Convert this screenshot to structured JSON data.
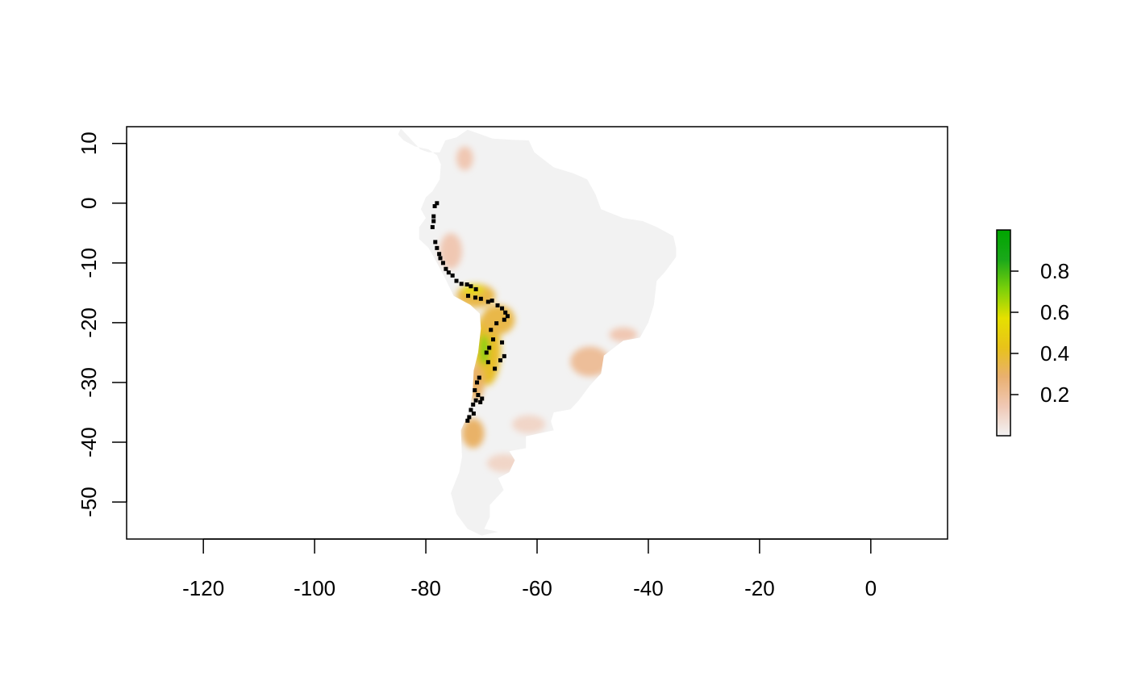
{
  "chart_data": {
    "type": "heatmap",
    "title": "",
    "xlabel": "",
    "ylabel": "",
    "xlim": [
      -133.8,
      13.8
    ],
    "ylim": [
      -56.2,
      12.8
    ],
    "x_ticks": [
      -120,
      -100,
      -80,
      -60,
      -40,
      -20,
      0
    ],
    "y_ticks": [
      10,
      0,
      -10,
      -20,
      -30,
      -40,
      -50
    ],
    "x_tick_labels": [
      "-120",
      "-100",
      "-80",
      "-60",
      "-40",
      "-20",
      "0"
    ],
    "y_tick_labels": [
      "10",
      "0",
      "-10",
      "-20",
      "-30",
      "-40",
      "-50"
    ],
    "grid": false,
    "legend": {
      "type": "colorbar",
      "placement": "right",
      "range": [
        0,
        1
      ],
      "ticks": [
        0.2,
        0.4,
        0.6,
        0.8
      ],
      "tick_labels": [
        "0.2",
        "0.4",
        "0.6",
        "0.8"
      ],
      "colors": [
        "#f2f2f2",
        "#f0c8b5",
        "#e9b070",
        "#e8c21a",
        "#e6e000",
        "#7ad00a",
        "#1aa81a",
        "#00a600"
      ]
    },
    "raster_outline": [
      [
        -84.5,
        12.5
      ],
      [
        -83.0,
        11.0
      ],
      [
        -81.0,
        9.0
      ],
      [
        -79.5,
        8.5
      ],
      [
        -77.5,
        8.5
      ],
      [
        -76.5,
        10.5
      ],
      [
        -74.5,
        11.0
      ],
      [
        -72.5,
        12.3
      ],
      [
        -71.0,
        11.8
      ],
      [
        -68.0,
        10.8
      ],
      [
        -64.5,
        10.6
      ],
      [
        -61.5,
        10.5
      ],
      [
        -60.5,
        8.5
      ],
      [
        -57.0,
        6.0
      ],
      [
        -53.5,
        5.0
      ],
      [
        -51.0,
        4.0
      ],
      [
        -49.5,
        1.5
      ],
      [
        -48.5,
        -1.0
      ],
      [
        -44.5,
        -2.5
      ],
      [
        -41.0,
        -3.0
      ],
      [
        -38.5,
        -4.0
      ],
      [
        -35.5,
        -5.5
      ],
      [
        -35.0,
        -7.5
      ],
      [
        -35.0,
        -9.0
      ],
      [
        -37.0,
        -11.5
      ],
      [
        -38.5,
        -13.0
      ],
      [
        -39.0,
        -17.0
      ],
      [
        -40.0,
        -20.0
      ],
      [
        -41.5,
        -22.5
      ],
      [
        -44.5,
        -23.0
      ],
      [
        -48.0,
        -25.5
      ],
      [
        -48.5,
        -28.5
      ],
      [
        -50.5,
        -30.5
      ],
      [
        -52.5,
        -33.0
      ],
      [
        -54.0,
        -34.5
      ],
      [
        -57.0,
        -35.0
      ],
      [
        -57.5,
        -36.5
      ],
      [
        -57.0,
        -38.0
      ],
      [
        -62.0,
        -39.0
      ],
      [
        -62.0,
        -41.0
      ],
      [
        -65.0,
        -41.5
      ],
      [
        -64.0,
        -43.0
      ],
      [
        -65.0,
        -45.0
      ],
      [
        -67.0,
        -46.0
      ],
      [
        -66.0,
        -48.0
      ],
      [
        -68.5,
        -50.5
      ],
      [
        -68.5,
        -52.5
      ],
      [
        -69.5,
        -54.5
      ],
      [
        -67.0,
        -55.0
      ],
      [
        -70.0,
        -55.6
      ],
      [
        -72.5,
        -54.5
      ],
      [
        -74.5,
        -52.0
      ],
      [
        -75.5,
        -48.5
      ],
      [
        -74.0,
        -45.0
      ],
      [
        -73.5,
        -42.5
      ],
      [
        -73.7,
        -38.0
      ],
      [
        -72.5,
        -35.5
      ],
      [
        -71.6,
        -32.0
      ],
      [
        -71.4,
        -28.0
      ],
      [
        -70.6,
        -25.0
      ],
      [
        -70.1,
        -21.0
      ],
      [
        -70.3,
        -18.5
      ],
      [
        -72.0,
        -17.0
      ],
      [
        -75.0,
        -15.5
      ],
      [
        -76.3,
        -13.0
      ],
      [
        -78.0,
        -10.0
      ],
      [
        -79.5,
        -7.5
      ],
      [
        -81.2,
        -6.0
      ],
      [
        -81.2,
        -4.0
      ],
      [
        -80.0,
        -2.5
      ],
      [
        -80.9,
        -1.0
      ],
      [
        -80.0,
        1.0
      ],
      [
        -78.8,
        2.0
      ],
      [
        -77.5,
        4.0
      ],
      [
        -77.3,
        6.5
      ],
      [
        -78.0,
        8.0
      ],
      [
        -79.5,
        9.0
      ],
      [
        -82.0,
        9.5
      ],
      [
        -84.0,
        10.5
      ],
      [
        -85.0,
        11.5
      ]
    ],
    "suitability_patches": [
      {
        "x": -69.0,
        "y": -24.5,
        "rx": 2.5,
        "ry": 6.0,
        "value": 0.4
      },
      {
        "x": -67.0,
        "y": -19.5,
        "rx": 3.0,
        "ry": 2.5,
        "value": 0.35
      },
      {
        "x": -71.0,
        "y": -15.5,
        "rx": 3.5,
        "ry": 2.0,
        "value": 0.35
      },
      {
        "x": -69.5,
        "y": -24.5,
        "rx": 0.8,
        "ry": 2.5,
        "value": 0.7
      },
      {
        "x": -71.5,
        "y": -14.5,
        "rx": 2.0,
        "ry": 0.8,
        "value": 0.55
      },
      {
        "x": -71.0,
        "y": -30.0,
        "rx": 1.5,
        "ry": 3.0,
        "value": 0.3
      },
      {
        "x": -71.5,
        "y": -38.5,
        "rx": 2.0,
        "ry": 2.5,
        "value": 0.3
      },
      {
        "x": -50.5,
        "y": -26.5,
        "rx": 3.5,
        "ry": 2.5,
        "value": 0.2
      },
      {
        "x": -44.5,
        "y": -22.0,
        "rx": 2.5,
        "ry": 1.2,
        "value": 0.15
      },
      {
        "x": -75.5,
        "y": -8.0,
        "rx": 2.0,
        "ry": 3.0,
        "value": 0.15
      },
      {
        "x": -73.0,
        "y": 7.5,
        "rx": 1.5,
        "ry": 2.0,
        "value": 0.15
      },
      {
        "x": -61.5,
        "y": -37.0,
        "rx": 3.0,
        "ry": 1.5,
        "value": 0.1
      },
      {
        "x": -66.0,
        "y": -43.5,
        "rx": 3.0,
        "ry": 1.5,
        "value": 0.1
      }
    ],
    "occurrence_points": [
      [
        -78.0,
        0.0
      ],
      [
        -78.4,
        -0.5
      ],
      [
        -78.6,
        -2.2
      ],
      [
        -78.6,
        -3.0
      ],
      [
        -78.8,
        -4.0
      ],
      [
        -78.3,
        -6.5
      ],
      [
        -78.0,
        -7.5
      ],
      [
        -77.6,
        -8.5
      ],
      [
        -77.4,
        -9.2
      ],
      [
        -76.9,
        -10.0
      ],
      [
        -76.4,
        -11.0
      ],
      [
        -75.9,
        -11.6
      ],
      [
        -75.2,
        -12.1
      ],
      [
        -74.5,
        -13.0
      ],
      [
        -73.6,
        -13.5
      ],
      [
        -72.6,
        -13.6
      ],
      [
        -71.9,
        -13.9
      ],
      [
        -71.0,
        -14.4
      ],
      [
        -72.4,
        -15.5
      ],
      [
        -71.1,
        -15.8
      ],
      [
        -70.1,
        -16.0
      ],
      [
        -68.8,
        -16.5
      ],
      [
        -68.1,
        -16.3
      ],
      [
        -67.1,
        -17.1
      ],
      [
        -66.3,
        -17.6
      ],
      [
        -65.7,
        -18.3
      ],
      [
        -65.3,
        -18.9
      ],
      [
        -65.9,
        -19.5
      ],
      [
        -67.3,
        -20.1
      ],
      [
        -68.3,
        -21.2
      ],
      [
        -67.9,
        -22.8
      ],
      [
        -68.6,
        -24.2
      ],
      [
        -69.1,
        -25.0
      ],
      [
        -68.8,
        -26.6
      ],
      [
        -67.6,
        -27.7
      ],
      [
        -66.3,
        -23.3
      ],
      [
        -65.9,
        -25.6
      ],
      [
        -66.6,
        -26.3
      ],
      [
        -70.4,
        -29.2
      ],
      [
        -70.8,
        -30.0
      ],
      [
        -71.2,
        -31.3
      ],
      [
        -70.6,
        -32.1
      ],
      [
        -71.0,
        -33.0
      ],
      [
        -71.5,
        -33.7
      ],
      [
        -71.9,
        -34.6
      ],
      [
        -72.2,
        -35.8
      ],
      [
        -72.5,
        -36.4
      ],
      [
        -71.4,
        -35.2
      ],
      [
        -70.2,
        -33.3
      ],
      [
        -69.9,
        -32.7
      ]
    ]
  }
}
